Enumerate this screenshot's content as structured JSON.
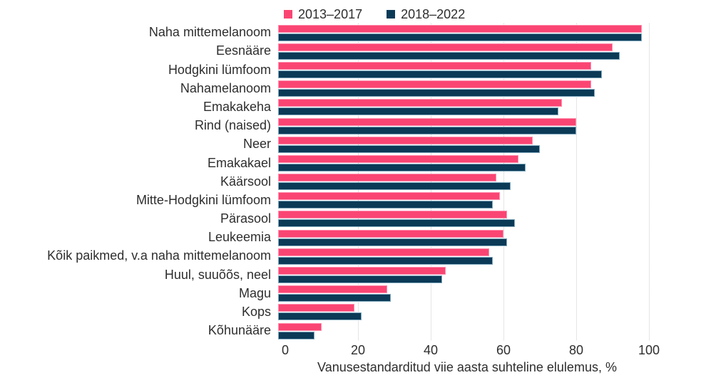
{
  "legend": [
    {
      "label": "2013–2017",
      "color": "#fa4573"
    },
    {
      "label": "2018–2022",
      "color": "#0b3a57"
    }
  ],
  "colors": {
    "series1": "#fa4573",
    "series2": "#0b3a57",
    "gridline": "#cccccc",
    "text": "#2e2e2e"
  },
  "chart_data": {
    "type": "bar",
    "orientation": "horizontal",
    "title": "",
    "xlabel": "Vanusestandarditud viie aasta suhteline elulemus, %",
    "ylabel": "",
    "xlim": [
      0,
      100
    ],
    "xticks": [
      0,
      20,
      40,
      60,
      80,
      100
    ],
    "grid": "dotted-vertical",
    "legend_position": "top",
    "categories": [
      "Naha mittemelanoom",
      "Eesnääre",
      "Hodgkini lümfoom",
      "Nahamelanoom",
      "Emakakeha",
      "Rind (naised)",
      "Neer",
      "Emakakael",
      "Käärsool",
      "Mitte-Hodgkini lümfoom",
      "Pärasool",
      "Leukeemia",
      "Kõik paikmed, v.a naha mittemelanoom",
      "Huul, suuõõs, neel",
      "Magu",
      "Kops",
      "Kõhunääre"
    ],
    "series": [
      {
        "name": "2013–2017",
        "color": "#fa4573",
        "values": [
          100,
          92,
          86,
          86,
          78,
          82,
          70,
          66,
          60,
          61,
          63,
          62,
          58,
          46,
          30,
          21,
          12
        ]
      },
      {
        "name": "2018–2022",
        "color": "#0b3a57",
        "values": [
          100,
          94,
          89,
          87,
          77,
          82,
          72,
          68,
          64,
          59,
          65,
          63,
          59,
          45,
          31,
          23,
          10
        ]
      }
    ]
  }
}
